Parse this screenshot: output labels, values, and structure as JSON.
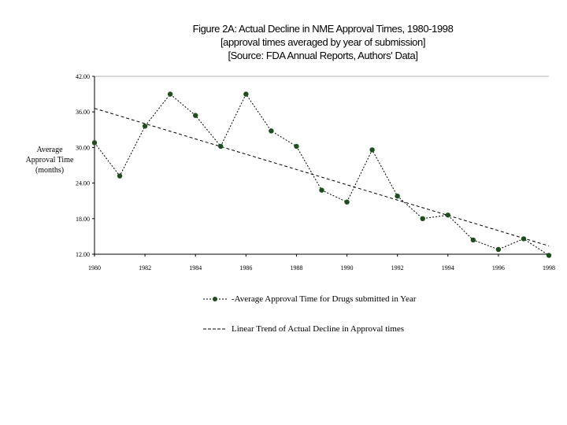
{
  "chart_data": {
    "type": "line",
    "title": "Figure 2A: Actual Decline in NME Approval Times, 1980-1998",
    "subtitle": "[approval times averaged by year of submission]",
    "source": "[Source: FDA Annual Reports, Authors' Data]",
    "ylabel_lines": [
      "Average",
      "Approval Time",
      "(months)"
    ],
    "xlabel": "",
    "ylim": [
      12,
      42
    ],
    "xlim": [
      1980,
      1998
    ],
    "y_ticks": [
      12,
      18,
      24,
      30,
      36,
      42
    ],
    "y_tick_labels": [
      "12.00",
      "18.00",
      "24.00",
      "30.00",
      "36.00",
      "42.00"
    ],
    "x_ticks": [
      1980,
      1982,
      1984,
      1986,
      1988,
      1990,
      1992,
      1994,
      1996,
      1998
    ],
    "x_tick_labels": [
      "1980",
      "1982",
      "1984",
      "1986",
      "1988",
      "1990",
      "1992",
      "1994",
      "1996",
      "1998"
    ],
    "grid": "horizontal at top only",
    "legend_position": "bottom",
    "series": [
      {
        "name": "Average Approval Time for Drugs submitted in Year",
        "style": "dotted-with-markers",
        "color": "#1e4d1e",
        "x": [
          1980,
          1981,
          1982,
          1983,
          1984,
          1985,
          1986,
          1987,
          1988,
          1989,
          1990,
          1991,
          1992,
          1993,
          1994,
          1995,
          1996,
          1997,
          1998
        ],
        "values": [
          30.8,
          25.2,
          33.6,
          39.0,
          35.4,
          30.2,
          39.0,
          32.8,
          30.2,
          22.8,
          20.8,
          29.6,
          21.8,
          18.0,
          18.6,
          14.4,
          12.8,
          14.6,
          11.8
        ]
      },
      {
        "name": "Linear Trend of Actual Decline in Approval times",
        "style": "dashed",
        "color": "#000000",
        "x": [
          1980,
          1998
        ],
        "values": [
          36.6,
          13.4
        ]
      }
    ]
  },
  "colors": {
    "marker": "#1e4d1e",
    "axis": "#000000",
    "grid": "#999999"
  }
}
